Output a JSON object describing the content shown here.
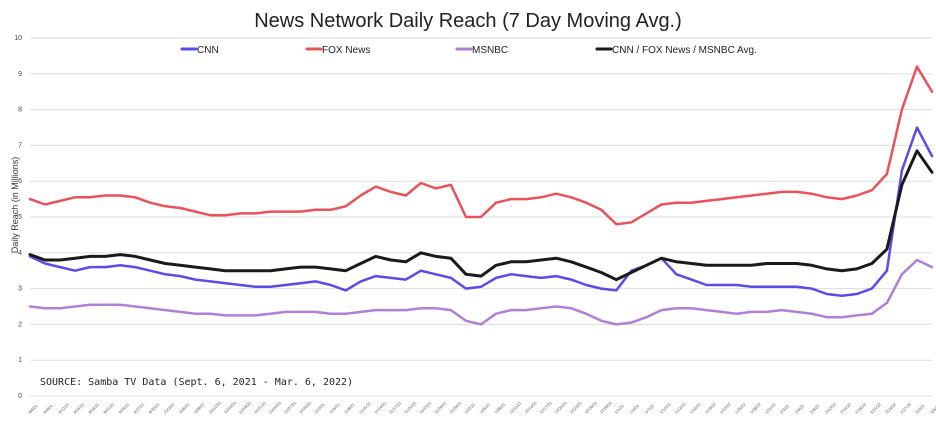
{
  "chart_data": {
    "type": "line",
    "title": "News Network Daily Reach (7 Day Moving Avg.)",
    "ylabel": "Daily Reach (in Millions)",
    "xlabel": "",
    "ylim": [
      0,
      10
    ],
    "yticks": [
      "0",
      "1",
      "2",
      "3",
      "4",
      "5",
      "6",
      "7",
      "8",
      "9",
      "10"
    ],
    "grid": true,
    "legend_position": "top",
    "source": "SOURCE: Samba TV Data (Sept. 6, 2021 - Mar. 6, 2022)",
    "x_labels": [
      "9/6/21",
      "9/9/21",
      "9/12/21",
      "9/15/21",
      "9/18/21",
      "9/21/21",
      "9/24/21",
      "9/27/21",
      "9/30/21",
      "10/3/21",
      "10/6/21",
      "10/9/21",
      "10/12/21",
      "10/15/21",
      "10/18/21",
      "10/21/21",
      "10/24/21",
      "10/27/21",
      "10/30/21",
      "11/2/21",
      "11/5/21",
      "11/8/21",
      "11/11/21",
      "11/14/21",
      "11/17/21",
      "11/20/21",
      "11/23/21",
      "11/26/21",
      "11/29/21",
      "12/2/21",
      "12/5/21",
      "12/8/21",
      "12/11/21",
      "12/14/21",
      "12/17/21",
      "12/20/21",
      "12/23/21",
      "12/26/21",
      "12/29/21",
      "1/1/22",
      "1/4/22",
      "1/7/22",
      "1/10/22",
      "1/13/22",
      "1/16/22",
      "1/19/22",
      "1/22/22",
      "1/25/22",
      "1/28/22",
      "1/31/22",
      "2/3/22",
      "2/6/22",
      "2/9/22",
      "2/12/22",
      "2/15/22",
      "2/18/22",
      "2/21/22",
      "2/24/22",
      "2/27/22",
      "3/2/22",
      "3/5/22"
    ],
    "series": [
      {
        "name": "CNN",
        "color": "#5b4be8",
        "values": [
          3.9,
          3.7,
          3.6,
          3.5,
          3.6,
          3.6,
          3.65,
          3.6,
          3.5,
          3.4,
          3.35,
          3.25,
          3.2,
          3.15,
          3.1,
          3.05,
          3.05,
          3.1,
          3.15,
          3.2,
          3.1,
          2.95,
          3.2,
          3.35,
          3.3,
          3.25,
          3.5,
          3.4,
          3.3,
          3.0,
          3.05,
          3.3,
          3.4,
          3.35,
          3.3,
          3.35,
          3.25,
          3.1,
          3.0,
          2.95,
          3.5,
          3.65,
          3.85,
          3.4,
          3.25,
          3.1,
          3.1,
          3.1,
          3.05,
          3.05,
          3.05,
          3.05,
          3.0,
          2.85,
          2.8,
          2.85,
          3.0,
          3.5,
          6.3,
          7.5,
          6.7
        ]
      },
      {
        "name": "FOX News",
        "color": "#e8535b",
        "values": [
          5.5,
          5.35,
          5.45,
          5.55,
          5.55,
          5.6,
          5.6,
          5.55,
          5.4,
          5.3,
          5.25,
          5.15,
          5.05,
          5.05,
          5.1,
          5.1,
          5.15,
          5.15,
          5.15,
          5.2,
          5.2,
          5.3,
          5.6,
          5.85,
          5.7,
          5.6,
          5.95,
          5.8,
          5.9,
          5.0,
          5.0,
          5.4,
          5.5,
          5.5,
          5.55,
          5.65,
          5.55,
          5.4,
          5.2,
          4.8,
          4.85,
          5.1,
          5.35,
          5.4,
          5.4,
          5.45,
          5.5,
          5.55,
          5.6,
          5.65,
          5.7,
          5.7,
          5.65,
          5.55,
          5.5,
          5.6,
          5.75,
          6.2,
          8.0,
          9.2,
          8.5
        ]
      },
      {
        "name": "MSNBC",
        "color": "#b07fd6",
        "values": [
          2.5,
          2.45,
          2.45,
          2.5,
          2.55,
          2.55,
          2.55,
          2.5,
          2.45,
          2.4,
          2.35,
          2.3,
          2.3,
          2.25,
          2.25,
          2.25,
          2.3,
          2.35,
          2.35,
          2.35,
          2.3,
          2.3,
          2.35,
          2.4,
          2.4,
          2.4,
          2.45,
          2.45,
          2.4,
          2.1,
          2.0,
          2.3,
          2.4,
          2.4,
          2.45,
          2.5,
          2.45,
          2.3,
          2.1,
          2.0,
          2.05,
          2.2,
          2.4,
          2.45,
          2.45,
          2.4,
          2.35,
          2.3,
          2.35,
          2.35,
          2.4,
          2.35,
          2.3,
          2.2,
          2.2,
          2.25,
          2.3,
          2.6,
          3.4,
          3.8,
          3.6
        ]
      },
      {
        "name": "CNN / FOX News / MSNBC Avg.",
        "color": "#1a1a1a",
        "values": [
          3.95,
          3.8,
          3.8,
          3.85,
          3.9,
          3.9,
          3.95,
          3.9,
          3.8,
          3.7,
          3.65,
          3.6,
          3.55,
          3.5,
          3.5,
          3.5,
          3.5,
          3.55,
          3.6,
          3.6,
          3.55,
          3.5,
          3.7,
          3.9,
          3.8,
          3.75,
          4.0,
          3.9,
          3.85,
          3.4,
          3.35,
          3.65,
          3.75,
          3.75,
          3.8,
          3.85,
          3.75,
          3.6,
          3.45,
          3.25,
          3.45,
          3.65,
          3.85,
          3.75,
          3.7,
          3.65,
          3.65,
          3.65,
          3.65,
          3.7,
          3.7,
          3.7,
          3.65,
          3.55,
          3.5,
          3.55,
          3.7,
          4.1,
          5.9,
          6.85,
          6.25
        ]
      }
    ]
  }
}
